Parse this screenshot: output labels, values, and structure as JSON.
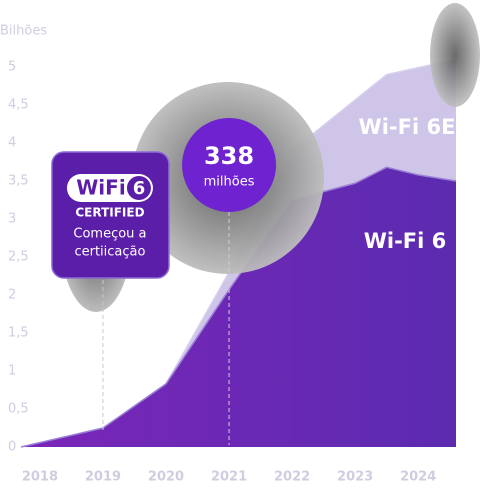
{
  "chart_data": {
    "type": "area",
    "y_label": "Bilhões",
    "xlim": [
      2017.7,
      2024.6
    ],
    "xticks": [
      2018,
      2019,
      2020,
      2021,
      2022,
      2023,
      2024
    ],
    "ylim": [
      0,
      5
    ],
    "yticks": [
      0,
      {
        "value": 0.5,
        "label": "0,5"
      },
      1,
      {
        "value": 1.5,
        "label": "1,5"
      },
      2,
      {
        "value": 2.5,
        "label": "2,5"
      },
      3,
      {
        "value": 3.5,
        "label": "3,5"
      },
      4,
      {
        "value": 4.5,
        "label": "4,5"
      },
      5
    ],
    "series": [
      {
        "name": "Wi-Fi 6E",
        "color": "#c9bfe6",
        "x": [
          2020,
          2021,
          2022,
          2023.5,
          2024.6
        ],
        "values": [
          0.83,
          2.3,
          3.9,
          4.9,
          5.1
        ]
      },
      {
        "name": "Wi-Fi 6",
        "color": "#6a22b0",
        "x": [
          2017.7,
          2019,
          2020,
          2021,
          2022,
          2023,
          2023.5,
          2024,
          2024.6
        ],
        "values": [
          0,
          0.25,
          0.83,
          2.07,
          3.25,
          3.47,
          3.68,
          3.58,
          3.5
        ]
      }
    ],
    "annotations": [
      {
        "x": 2019,
        "logo": "WiFi",
        "logo_number": "6",
        "badge": "CERTIFIED",
        "lines": [
          "Começou a",
          "certiicação"
        ]
      },
      {
        "x": 2021,
        "value_label": "338",
        "unit": "milhões"
      }
    ]
  }
}
